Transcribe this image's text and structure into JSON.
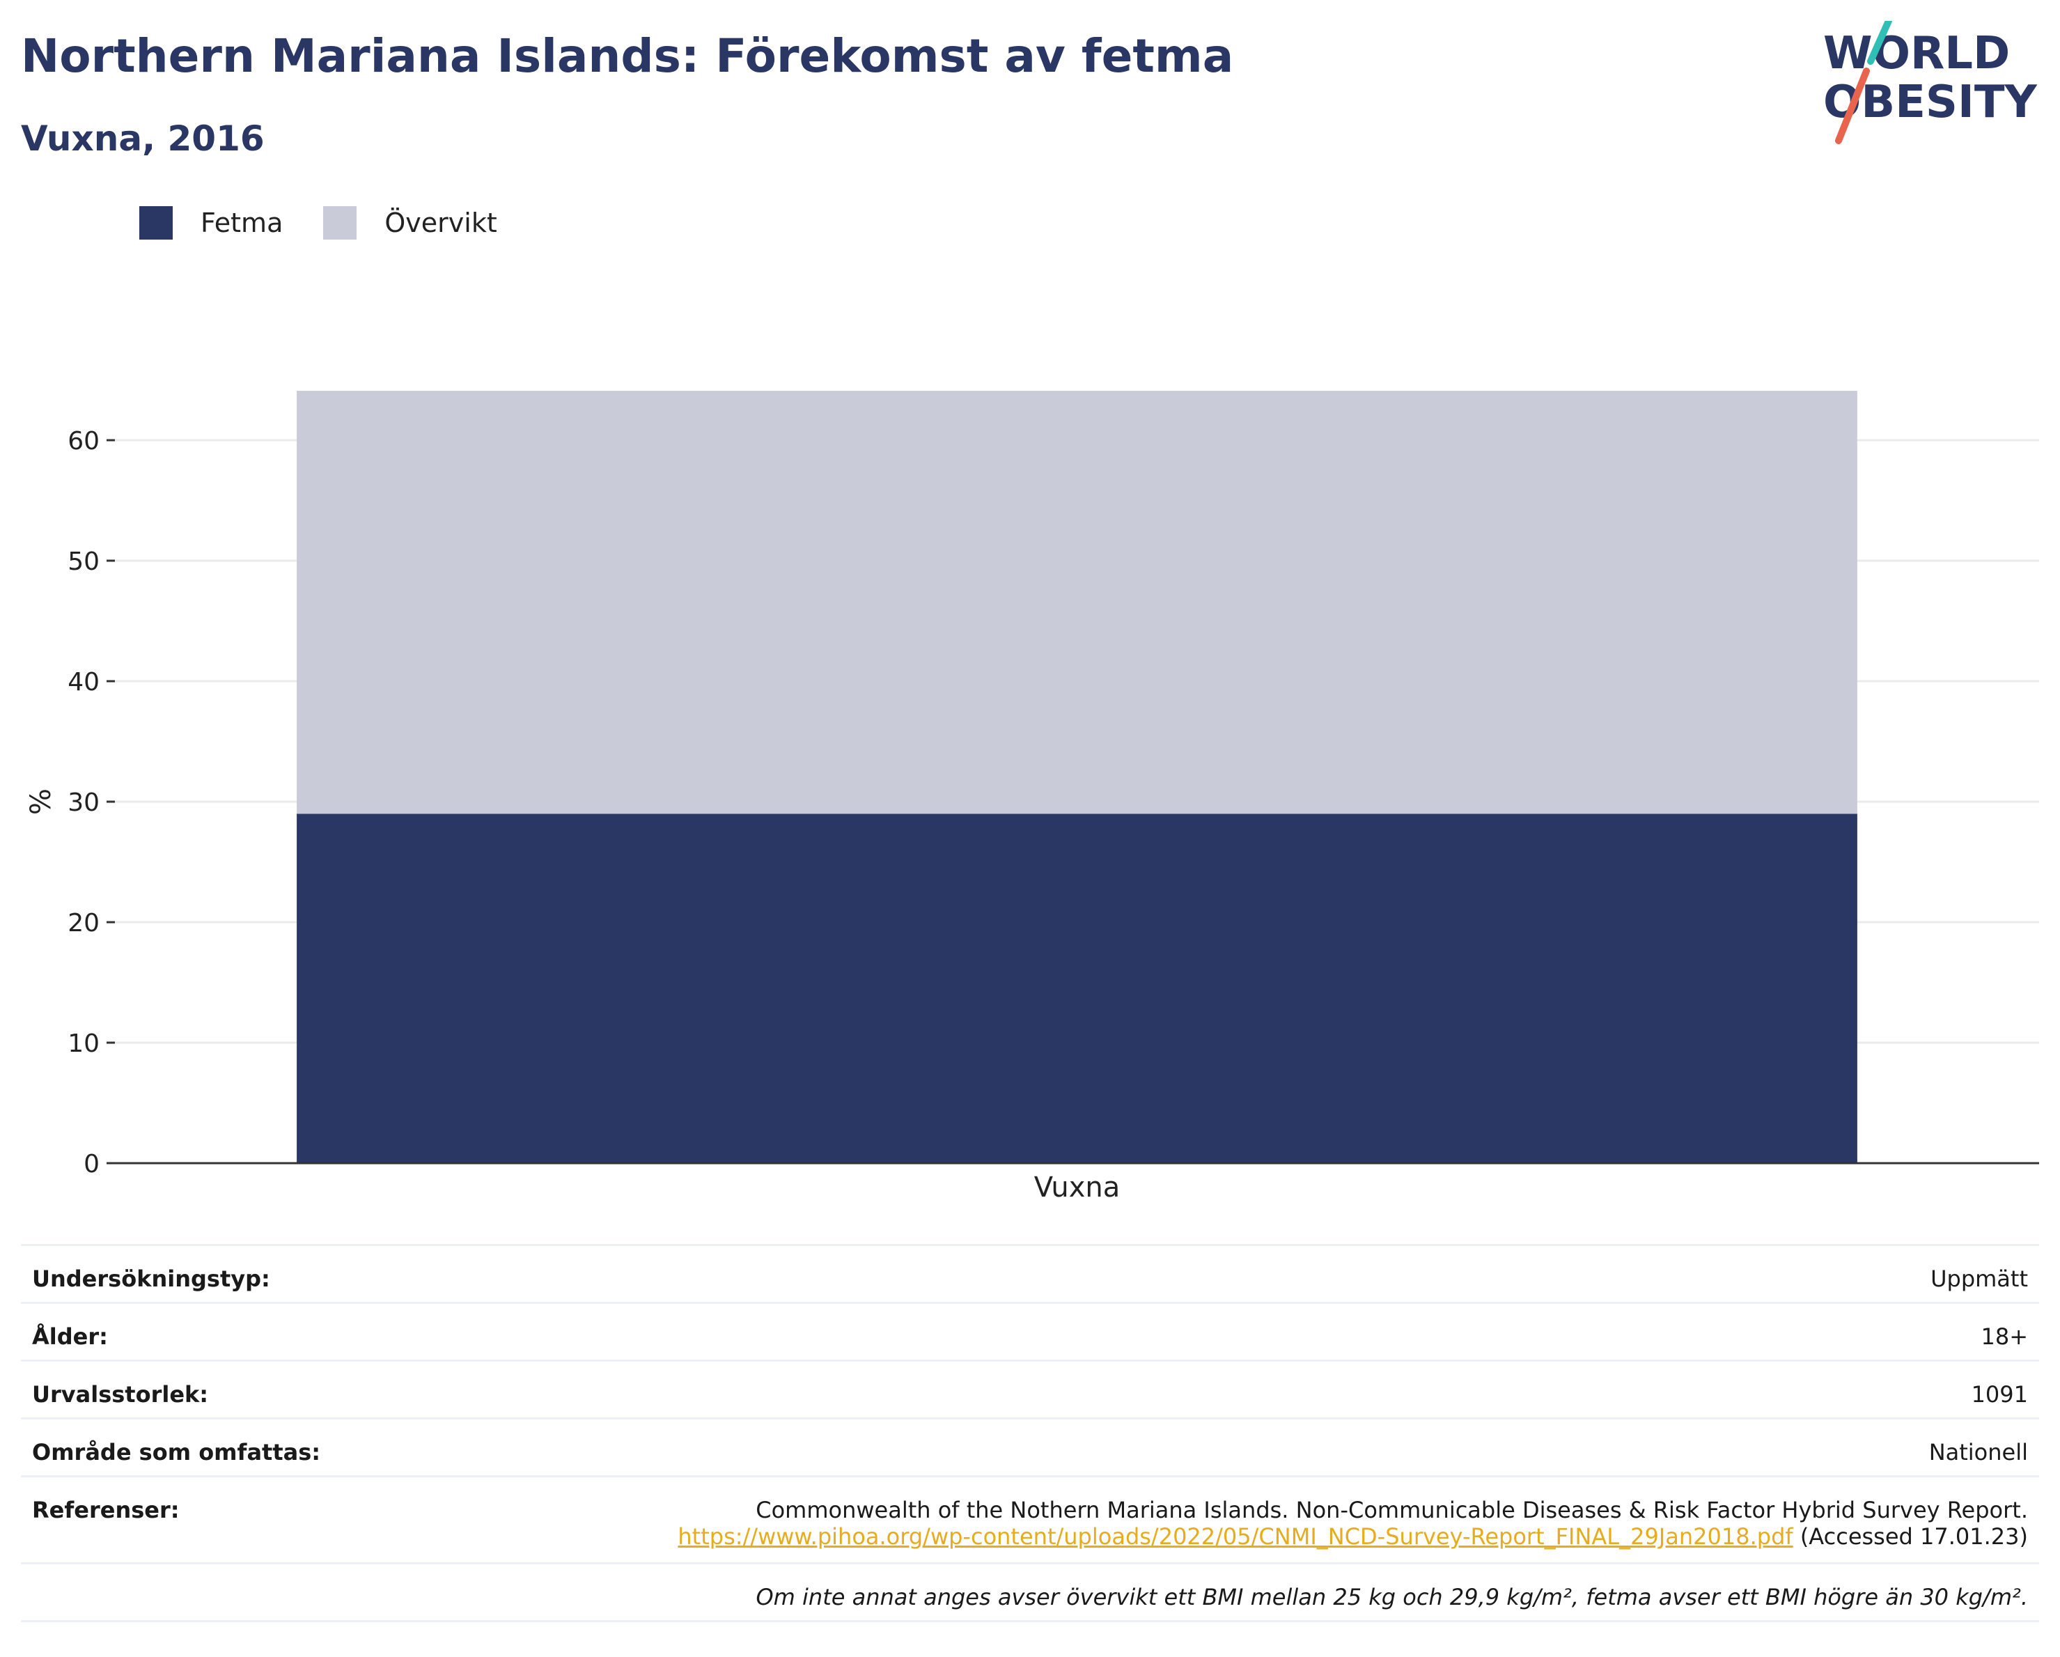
{
  "header": {
    "title": "Northern Mariana Islands: Förekomst av fetma",
    "subtitle": "Vuxna, 2016",
    "logo_text": [
      "WORLD",
      "OBESITY"
    ]
  },
  "legend": [
    {
      "label": "Fetma",
      "color": "#2a3664"
    },
    {
      "label": "Övervikt",
      "color": "#c9ccd8"
    }
  ],
  "chart_data": {
    "type": "bar",
    "stacked": true,
    "categories": [
      "Vuxna"
    ],
    "series": [
      {
        "name": "Fetma",
        "values": [
          29.0
        ],
        "color": "#2a3664"
      },
      {
        "name": "Övervikt",
        "values": [
          35.1
        ],
        "color": "#c9ccd8"
      }
    ],
    "ylabel": "%",
    "xlabel": "",
    "ylim": [
      0,
      65
    ],
    "yticks": [
      0,
      10,
      20,
      30,
      40,
      50,
      60
    ],
    "grid": true,
    "legend_position": "top-left"
  },
  "info": {
    "survey_type_label": "Undersökningstyp:",
    "survey_type_value": "Uppmätt",
    "age_label": "Ålder:",
    "age_value": "18+",
    "sample_label": "Urvalsstorlek:",
    "sample_value": "1091",
    "area_label": "Område som omfattas:",
    "area_value": "Nationell",
    "refs_label": "Referenser:",
    "refs_text": "Commonwealth of the Nothern Mariana Islands. Non-Communicable Diseases & Risk Factor Hybrid Survey Report.",
    "refs_link": "https://www.pihoa.org/wp-content/uploads/2022/05/CNMI_NCD-Survey-Report_FINAL_29Jan2018.pdf",
    "refs_accessed": "(Accessed 17.01.23)",
    "note": "Om inte annat anges avser övervikt ett BMI mellan 25 kg och 29,9 kg/m², fetma avser ett BMI högre än 30 kg/m²."
  }
}
